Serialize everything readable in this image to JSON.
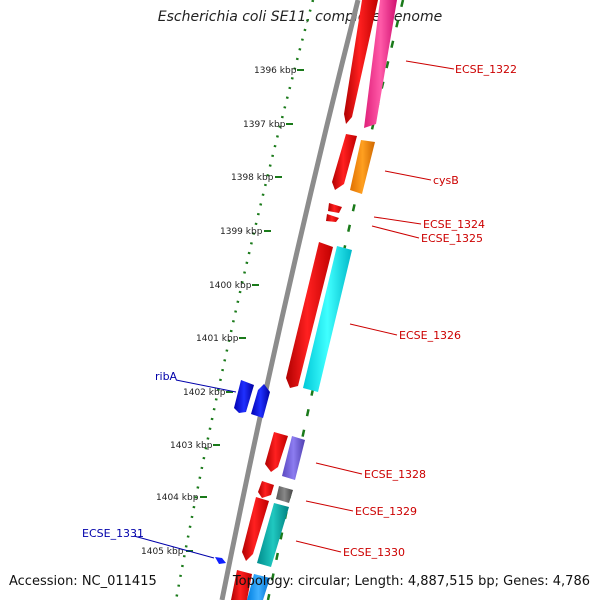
{
  "title": "Escherichia coli SE11, complete genome",
  "footer": {
    "accession": "Accession: NC_011415",
    "summary": "Topology: circular; Length: 4,887,515 bp; Genes: 4,786"
  },
  "scale_ticks": [
    "1396 kbp",
    "1397 kbp",
    "1398 kbp",
    "1399 kbp",
    "1400 kbp",
    "1401 kbp",
    "1402 kbp",
    "1403 kbp",
    "1404 kbp",
    "1405 kbp"
  ],
  "gene_labels": [
    {
      "text": "ECSE_1322",
      "color": "#cc0000"
    },
    {
      "text": "cysB",
      "color": "#cc0000"
    },
    {
      "text": "ECSE_1324",
      "color": "#cc0000"
    },
    {
      "text": "ECSE_1325",
      "color": "#cc0000"
    },
    {
      "text": "ECSE_1326",
      "color": "#cc0000"
    },
    {
      "text": "ribA",
      "color": "#0000aa"
    },
    {
      "text": "ECSE_1328",
      "color": "#cc0000"
    },
    {
      "text": "ECSE_1329",
      "color": "#cc0000"
    },
    {
      "text": "ECSE_1331",
      "color": "#0000aa"
    },
    {
      "text": "ECSE_1330",
      "color": "#cc0000"
    }
  ],
  "colors": {
    "backbone": "#8c8c8c",
    "forward_cds": "#ff0000",
    "reverse_cds": "#0000ff",
    "tick_green": "#1a7a1a",
    "label_line_red": "#cc0000",
    "label_line_blue": "#0000aa"
  }
}
